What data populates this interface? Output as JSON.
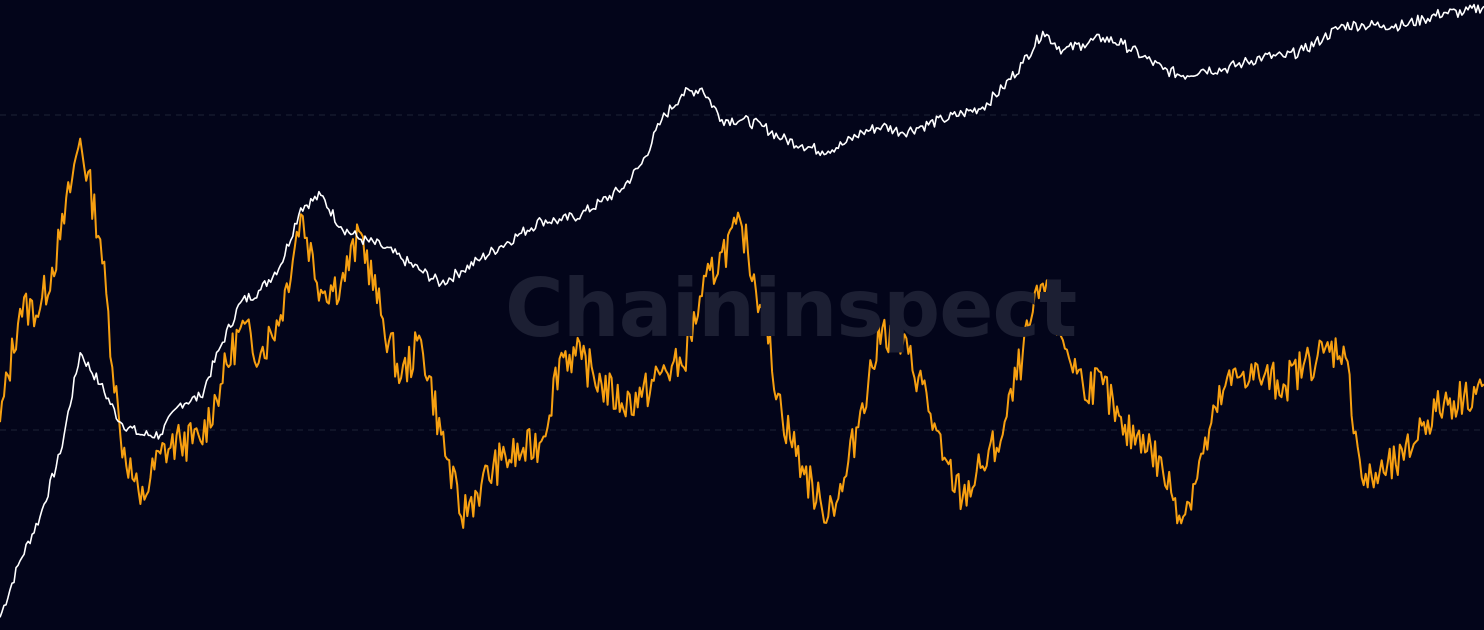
{
  "watermark": {
    "text": "Chaininspect",
    "color": "#1c1f33"
  },
  "chart_data": {
    "type": "line",
    "title": "",
    "xlabel": "",
    "ylabel": "",
    "grid": true,
    "grid_style": "dashed",
    "background": "#03051a",
    "legend": "none",
    "x": [
      0,
      20,
      40,
      60,
      80,
      100,
      120,
      140,
      160,
      180,
      200,
      220,
      240,
      260,
      280,
      300,
      320,
      340,
      360,
      380,
      400,
      420,
      440,
      460,
      480,
      500,
      520,
      540,
      560,
      580,
      600,
      620,
      640,
      660,
      680,
      700,
      720,
      740,
      760,
      780,
      800,
      820,
      840,
      860,
      880,
      900,
      920,
      940,
      960,
      980,
      1000,
      1020,
      1040,
      1060,
      1080,
      1100,
      1120,
      1140,
      1160,
      1180,
      1200,
      1220,
      1240,
      1260,
      1280,
      1300,
      1320,
      1340,
      1360,
      1380,
      1400,
      1420,
      1440,
      1460,
      1480
    ],
    "ylim": [
      0,
      100
    ],
    "series": [
      {
        "name": "",
        "color": "#ffffff",
        "values": [
          2,
          11,
          18,
          28,
          44,
          39,
          33,
          31,
          31,
          36,
          37,
          45,
          52,
          54,
          58,
          67,
          69,
          64,
          62,
          61,
          59,
          57,
          55,
          57,
          59,
          61,
          63,
          65,
          65,
          66,
          68,
          70,
          74,
          81,
          85,
          86,
          81,
          81,
          80,
          78,
          77,
          76,
          77,
          79,
          80,
          79,
          80,
          81,
          82,
          83,
          86,
          90,
          95,
          92,
          93,
          94,
          93,
          91,
          89,
          88,
          89,
          89,
          90,
          91,
          91,
          92,
          94,
          96,
          96,
          96,
          96,
          97,
          98,
          98,
          99
        ]
      },
      {
        "name": "",
        "color": "#f7a011",
        "values": [
          33,
          51,
          51,
          62,
          78,
          62,
          31,
          20,
          28,
          30,
          30,
          39,
          48,
          44,
          50,
          66,
          54,
          55,
          63,
          50,
          40,
          46,
          31,
          18,
          23,
          27,
          28,
          30,
          44,
          43,
          39,
          36,
          37,
          41,
          42,
          53,
          60,
          64,
          51,
          34,
          26,
          19,
          22,
          36,
          48,
          45,
          39,
          27,
          21,
          26,
          31,
          44,
          55,
          46,
          39,
          39,
          31,
          31,
          25,
          18,
          28,
          38,
          41,
          40,
          39,
          42,
          44,
          45,
          23,
          25,
          27,
          33,
          36,
          37,
          39
        ]
      }
    ]
  }
}
